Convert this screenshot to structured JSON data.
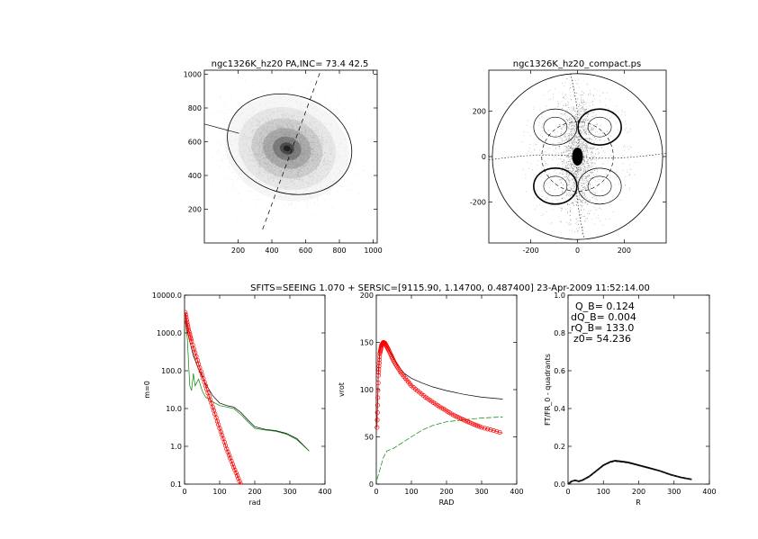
{
  "chart_data": [
    {
      "type": "scatter",
      "title": "ngc1326K_hz20 PA,INC= 73.4 42.5",
      "xlim": [
        0,
        1024
      ],
      "ylim": [
        0,
        1024
      ],
      "xticks": [
        "200",
        "400",
        "600",
        "800",
        "1000"
      ],
      "yticks": [
        "200",
        "400",
        "600",
        "800",
        "1000"
      ],
      "center": [
        490,
        560
      ],
      "ellipse": {
        "cx": 505,
        "cy": 585,
        "a": 375,
        "b": 290,
        "angle_deg": -17
      },
      "major_axis": [
        [
          0,
          705
        ],
        [
          1024,
          430
        ]
      ],
      "minor_axis": [
        [
          345,
          80
        ],
        [
          690,
          1024
        ]
      ]
    },
    {
      "type": "scatter",
      "title": "ngc1326K_hz20_compact.ps",
      "xlim": [
        -380,
        380
      ],
      "ylim": [
        -380,
        380
      ],
      "xticks": [
        "-200",
        "0",
        "200"
      ],
      "yticks": [
        "-200",
        "0",
        "200"
      ],
      "circle_radius": 365
    },
    {
      "type": "line",
      "title": "SFITS=SEEING 1.070 + SERSIC=[9115.90, 1.14700, 0.487400]  23-Apr-2009 11:52:14.00",
      "xlabel": "rad",
      "ylabel": "m=0",
      "xlim": [
        0,
        400
      ],
      "ylim_log": [
        0.1,
        10000
      ],
      "xticks": [
        "0",
        "100",
        "200",
        "300",
        "400"
      ],
      "yticks": [
        "0.1",
        "1.0",
        "10.0",
        "100.0",
        "1000.0",
        "10000.0"
      ],
      "series": [
        {
          "color": "#000000",
          "x": [
            2,
            10,
            25,
            40,
            60,
            80,
            100,
            120,
            140,
            160,
            180,
            200,
            230,
            260,
            290,
            320,
            355
          ],
          "y": [
            3200,
            900,
            250,
            110,
            45,
            22,
            14,
            12,
            11,
            8,
            5,
            3.3,
            2.8,
            2.6,
            2.2,
            1.6,
            0.75
          ]
        },
        {
          "color": "#008800",
          "x": [
            2,
            8,
            15,
            20,
            25,
            30,
            40,
            50,
            60,
            80,
            100,
            120,
            140,
            160,
            180,
            200,
            230,
            260,
            290,
            320,
            355
          ],
          "y": [
            2200,
            700,
            40,
            30,
            85,
            40,
            60,
            30,
            20,
            15,
            12,
            11,
            10,
            7,
            4.5,
            3,
            2.7,
            2.5,
            2.1,
            1.5,
            0.75
          ]
        },
        {
          "color": "#ff0000",
          "x": [
            2,
            10,
            20,
            40,
            60,
            80,
            100,
            120,
            140,
            160,
            175
          ],
          "y": [
            3500,
            1400,
            600,
            150,
            40,
            11,
            3,
            0.85,
            0.28,
            0.1,
            0.05
          ]
        }
      ]
    },
    {
      "type": "line",
      "xlabel": "RAD",
      "ylabel": "vrot",
      "xlim": [
        0,
        400
      ],
      "ylim": [
        0,
        200
      ],
      "xticks": [
        "0",
        "100",
        "200",
        "300",
        "400"
      ],
      "yticks": [
        "0",
        "50",
        "100",
        "150",
        "200"
      ],
      "series": [
        {
          "color": "#000000",
          "x": [
            2,
            6,
            10,
            15,
            20,
            30,
            45,
            60,
            80,
            100,
            130,
            160,
            200,
            250,
            300,
            360
          ],
          "y": [
            65,
            120,
            142,
            150,
            151,
            146,
            136,
            126,
            117,
            112,
            107,
            103,
            99,
            95,
            92,
            90
          ]
        },
        {
          "color": "#008800",
          "x": [
            2,
            10,
            20,
            30,
            50,
            70,
            100,
            130,
            160,
            200,
            250,
            300,
            360
          ],
          "y": [
            5,
            15,
            28,
            35,
            38,
            43,
            50,
            57,
            62,
            66,
            68,
            70,
            71
          ]
        },
        {
          "color": "#ff0000",
          "x": [
            2,
            6,
            10,
            15,
            20,
            25,
            35,
            50,
            70,
            100,
            140,
            180,
            220,
            260,
            300,
            360
          ],
          "y": [
            60,
            115,
            138,
            147,
            150,
            149,
            142,
            130,
            118,
            104,
            92,
            82,
            73,
            66,
            60,
            54
          ]
        }
      ]
    },
    {
      "type": "line",
      "xlabel": "R",
      "ylabel": "FT/FR_0 - quadrants",
      "xlim": [
        0,
        400
      ],
      "ylim": [
        0,
        1.0
      ],
      "xticks": [
        "0",
        "100",
        "200",
        "300",
        "400"
      ],
      "yticks": [
        "0.0",
        "0.2",
        "0.4",
        "0.6",
        "0.8",
        "1.0"
      ],
      "annotations": [
        "Q_B=  0.124",
        "dQ_B=  0.004",
        "rQ_B=  133.0",
        "z0= 54.236"
      ],
      "series": [
        {
          "color": "#000000",
          "x": [
            0,
            10,
            20,
            30,
            40,
            60,
            80,
            100,
            120,
            133,
            150,
            170,
            200,
            230,
            260,
            290,
            320,
            350
          ],
          "y": [
            0,
            0.015,
            0.02,
            0.015,
            0.02,
            0.04,
            0.07,
            0.1,
            0.118,
            0.124,
            0.12,
            0.115,
            0.1,
            0.085,
            0.07,
            0.05,
            0.035,
            0.025
          ]
        }
      ]
    }
  ]
}
